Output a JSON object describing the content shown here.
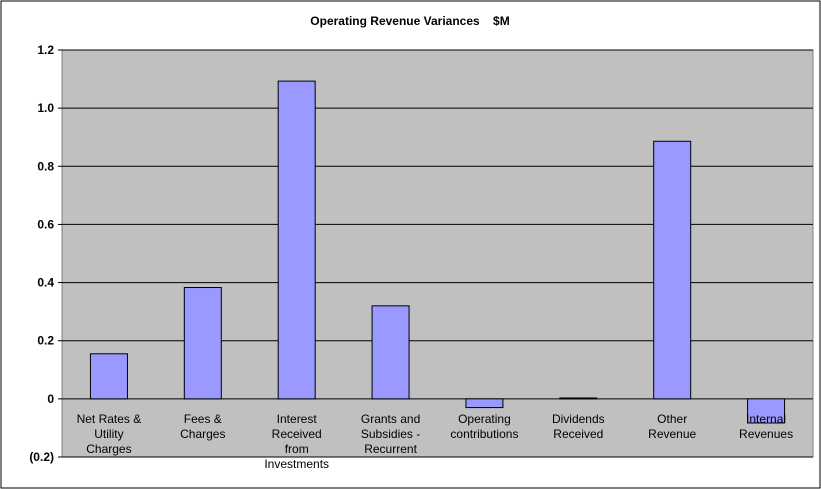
{
  "chart_data": {
    "type": "bar",
    "title": "Operating Revenue Variances    $M",
    "categories": [
      "Net Rates & Utility Charges",
      "Fees & Charges",
      "Interest Received from Investments",
      "Grants and Subsidies - Recurrent",
      "Operating contributions",
      "Dividends Received",
      "Other Revenue",
      "Internal Revenues"
    ],
    "values": [
      0.155,
      0.383,
      1.093,
      0.32,
      -0.03,
      0.003,
      0.886,
      -0.083
    ],
    "color": "#9999ff",
    "ylim": [
      -0.2,
      1.2
    ],
    "yticks": [
      {
        "value": -0.2,
        "label": "(0.2)"
      },
      0,
      0.2,
      0.4,
      0.6,
      0.8,
      {
        "value": 1.0,
        "label": "1.0"
      },
      1.2
    ],
    "grid": true
  }
}
